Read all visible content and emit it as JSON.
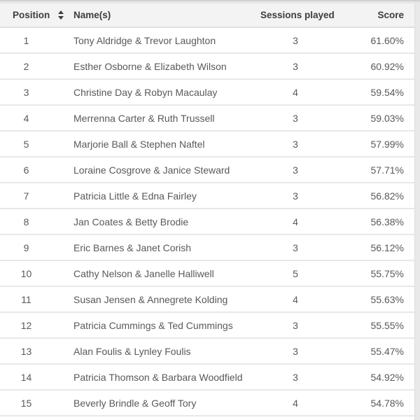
{
  "table": {
    "columns": [
      {
        "key": "position",
        "label": "Position",
        "sortable": true,
        "sort_icon": "sort-arrows"
      },
      {
        "key": "names",
        "label": "Name(s)"
      },
      {
        "key": "sessions",
        "label": "Sessions played"
      },
      {
        "key": "score",
        "label": "Score"
      }
    ],
    "rows": [
      {
        "position": "1",
        "names": "Tony Aldridge & Trevor Laughton",
        "sessions": "3",
        "score": "61.60%"
      },
      {
        "position": "2",
        "names": "Esther Osborne & Elizabeth Wilson",
        "sessions": "3",
        "score": "60.92%"
      },
      {
        "position": "3",
        "names": "Christine Day & Robyn Macaulay",
        "sessions": "4",
        "score": "59.54%"
      },
      {
        "position": "4",
        "names": "Merrenna Carter & Ruth Trussell",
        "sessions": "3",
        "score": "59.03%"
      },
      {
        "position": "5",
        "names": "Marjorie Ball & Stephen Naftel",
        "sessions": "3",
        "score": "57.99%"
      },
      {
        "position": "6",
        "names": "Loraine Cosgrove & Janice Steward",
        "sessions": "3",
        "score": "57.71%"
      },
      {
        "position": "7",
        "names": "Patricia Little & Edna Fairley",
        "sessions": "3",
        "score": "56.82%"
      },
      {
        "position": "8",
        "names": "Jan Coates & Betty Brodie",
        "sessions": "4",
        "score": "56.38%"
      },
      {
        "position": "9",
        "names": "Eric Barnes & Janet Corish",
        "sessions": "3",
        "score": "56.12%"
      },
      {
        "position": "10",
        "names": "Cathy Nelson & Janelle Halliwell",
        "sessions": "5",
        "score": "55.75%"
      },
      {
        "position": "11",
        "names": "Susan Jensen & Annegrete Kolding",
        "sessions": "4",
        "score": "55.63%"
      },
      {
        "position": "12",
        "names": "Patricia Cummings & Ted Cummings",
        "sessions": "3",
        "score": "55.55%"
      },
      {
        "position": "13",
        "names": "Alan Foulis & Lynley Foulis",
        "sessions": "3",
        "score": "55.47%"
      },
      {
        "position": "14",
        "names": "Patricia Thomson & Barbara Woodfield",
        "sessions": "3",
        "score": "54.92%"
      },
      {
        "position": "15",
        "names": "Beverly Brindle & Geoff Tory",
        "sessions": "4",
        "score": "54.78%"
      }
    ]
  },
  "icons": {
    "position_sort": "sort-arrows-icon"
  },
  "colors": {
    "page_background": "#e9e9e9",
    "table_background": "#ffffff",
    "header_background": "#f3f3f3",
    "header_text": "#3d3d3d",
    "body_text": "#58595b",
    "row_divider": "#e8e8e8",
    "top_border": "#d2d2d2"
  }
}
